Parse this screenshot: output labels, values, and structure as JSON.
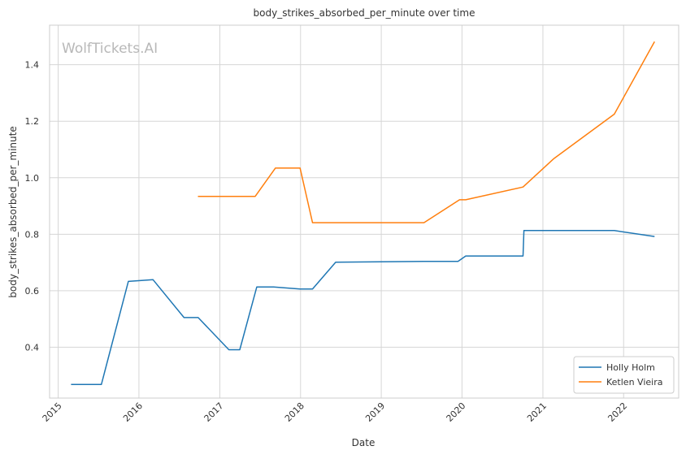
{
  "chart_data": {
    "type": "line",
    "title": "body_strikes_absorbed_per_minute over time",
    "xlabel": "Date",
    "ylabel": "body_strikes_absorbed_per_minute",
    "watermark": "WolfTickets.AI",
    "x_ticks": [
      "2015",
      "2016",
      "2017",
      "2018",
      "2019",
      "2020",
      "2021",
      "2022"
    ],
    "y_ticks": [
      "0.4",
      "0.6",
      "0.8",
      "1.0",
      "1.2",
      "1.4"
    ],
    "xlim": [
      "2014-11-23",
      "2022-09-07"
    ],
    "ylim": [
      0.22,
      1.54
    ],
    "grid": true,
    "legend_position": "lower right",
    "series": [
      {
        "name": "Holly Holm",
        "color": "#1f77b4",
        "points": [
          {
            "x": "2015-02-28",
            "y": 0.268
          },
          {
            "x": "2015-07-15",
            "y": 0.268
          },
          {
            "x": "2015-11-14",
            "y": 0.633
          },
          {
            "x": "2016-03-05",
            "y": 0.639
          },
          {
            "x": "2016-07-23",
            "y": 0.505
          },
          {
            "x": "2016-09-25",
            "y": 0.505
          },
          {
            "x": "2017-02-11",
            "y": 0.391
          },
          {
            "x": "2017-04-01",
            "y": 0.391
          },
          {
            "x": "2017-06-17",
            "y": 0.613
          },
          {
            "x": "2017-09-01",
            "y": 0.613
          },
          {
            "x": "2017-12-30",
            "y": 0.606
          },
          {
            "x": "2018-02-24",
            "y": 0.606
          },
          {
            "x": "2018-06-09",
            "y": 0.701
          },
          {
            "x": "2019-07-13",
            "y": 0.704
          },
          {
            "x": "2019-12-14",
            "y": 0.704
          },
          {
            "x": "2020-01-18",
            "y": 0.723
          },
          {
            "x": "2020-10-03",
            "y": 0.723
          },
          {
            "x": "2020-10-07",
            "y": 0.813
          },
          {
            "x": "2021-11-20",
            "y": 0.813
          },
          {
            "x": "2022-05-21",
            "y": 0.792
          }
        ]
      },
      {
        "name": "Ketlen Vieira",
        "color": "#ff7f0e",
        "points": [
          {
            "x": "2016-09-24",
            "y": 0.934
          },
          {
            "x": "2017-06-10",
            "y": 0.934
          },
          {
            "x": "2017-09-09",
            "y": 1.034
          },
          {
            "x": "2017-12-30",
            "y": 1.034
          },
          {
            "x": "2018-02-24",
            "y": 0.841
          },
          {
            "x": "2019-07-13",
            "y": 0.841
          },
          {
            "x": "2019-12-21",
            "y": 0.922
          },
          {
            "x": "2020-01-18",
            "y": 0.922
          },
          {
            "x": "2020-10-03",
            "y": 0.967
          },
          {
            "x": "2021-02-20",
            "y": 1.068
          },
          {
            "x": "2021-11-20",
            "y": 1.225
          },
          {
            "x": "2022-05-21",
            "y": 1.482
          }
        ]
      }
    ]
  }
}
